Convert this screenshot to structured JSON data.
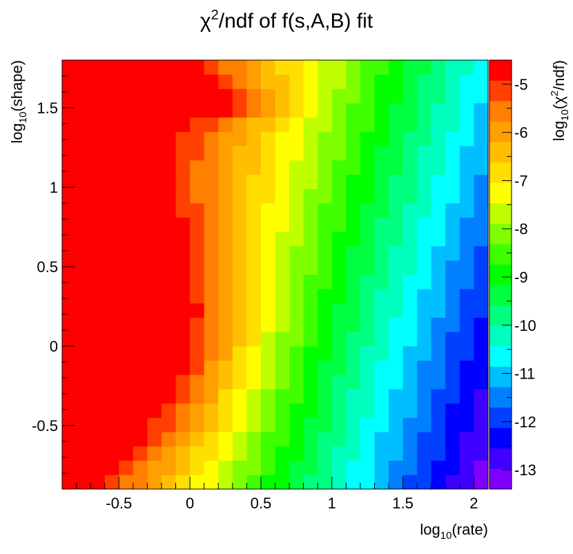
{
  "chart_data": {
    "type": "heatmap",
    "title": "χ²/ndf of f(s,A,B) fit",
    "title_parts": {
      "chi": "χ",
      "sup": "2",
      "rest": "/ndf of f(s,A,B) fit"
    },
    "xlabel": "log10(rate)",
    "xlabel_parts": {
      "pre": "log",
      "sub": "10",
      "post": "(rate)"
    },
    "ylabel": "log10(shape)",
    "ylabel_parts": {
      "pre": "log",
      "sub": "10",
      "post": "(shape)"
    },
    "zlabel": "log10(χ²/ndf)",
    "zlabel_parts": {
      "pre": "log",
      "sub": "10",
      "mid": "(χ",
      "sup": "2",
      "post": "/ndf)"
    },
    "xlim": [
      -0.9,
      2.1
    ],
    "ylim": [
      -0.9,
      1.8
    ],
    "zlim": [
      -13.4,
      -4.5
    ],
    "x_ticks": [
      {
        "value": -0.5,
        "label": "-0.5"
      },
      {
        "value": 0,
        "label": "0"
      },
      {
        "value": 0.5,
        "label": "0.5"
      },
      {
        "value": 1,
        "label": "1"
      },
      {
        "value": 1.5,
        "label": "1.5"
      },
      {
        "value": 2,
        "label": "2"
      }
    ],
    "y_ticks": [
      {
        "value": -0.5,
        "label": "-0.5"
      },
      {
        "value": 0,
        "label": "0"
      },
      {
        "value": 0.5,
        "label": "0.5"
      },
      {
        "value": 1,
        "label": "1"
      },
      {
        "value": 1.5,
        "label": "1.5"
      }
    ],
    "z_ticks": [
      {
        "value": -5,
        "label": "-5"
      },
      {
        "value": -6,
        "label": "-6"
      },
      {
        "value": -7,
        "label": "-7"
      },
      {
        "value": -8,
        "label": "-8"
      },
      {
        "value": -9,
        "label": "-9"
      },
      {
        "value": -10,
        "label": "-10"
      },
      {
        "value": -11,
        "label": "-11"
      },
      {
        "value": -12,
        "label": "-12"
      },
      {
        "value": -13,
        "label": "-13"
      }
    ],
    "grid": false,
    "legend": "color bar right",
    "palette": [
      "#7f00ff",
      "#4000ff",
      "#0000ff",
      "#0040ff",
      "#0080ff",
      "#00bfff",
      "#00ffff",
      "#00ffbf",
      "#00ff80",
      "#00ff40",
      "#00ff00",
      "#40ff00",
      "#80ff00",
      "#bfff00",
      "#ffff00",
      "#ffdf00",
      "#ffbf00",
      "#ff9f00",
      "#ff7f00",
      "#ff4000",
      "#ff0000"
    ],
    "description": "Fit quality map on a 30 x 30 grid: highest values (about -4.5) in a broad red region near rate -0.9..0, shape -0.3..0.4; decreasing diagonally to the lowest values (about -13) near rate 2, shape -0.9; a secondary warm band near rate -0.2..0.3, shape 1.5..1.6."
  }
}
